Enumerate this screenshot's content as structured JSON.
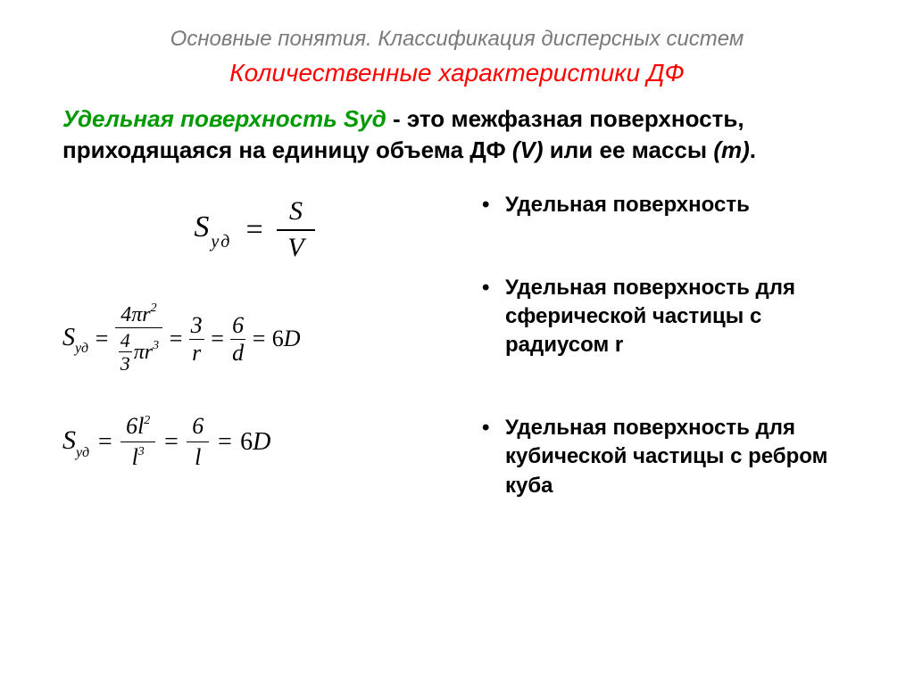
{
  "header": {
    "line1": "Основные понятия. Классификация дисперсных систем",
    "line2": "Количественные характеристики ДФ"
  },
  "definition": {
    "term": "Удельная поверхность Sуд",
    "text1": " - это межфазная поверхность, приходящаяся на единицу объема ДФ ",
    "ital1": "(V)",
    "text2": " или ее массы ",
    "ital2": "(m)",
    "text3": "."
  },
  "formulas": {
    "f1": {
      "lhs_S": "S",
      "lhs_sub": "уд",
      "eq": "=",
      "num": "S",
      "den": "V"
    },
    "f2": {
      "lhs_S": "S",
      "lhs_sub": "уд",
      "eq": "=",
      "num_txt": "4πr",
      "num_sup": "2",
      "den_frac_num": "4",
      "den_frac_den": "3",
      "den_rest": "πr",
      "den_sup": "3",
      "mid1_num": "3",
      "mid1_den": "r",
      "mid2_num": "6",
      "mid2_den": "d",
      "rhs_num": "6",
      "rhs_D": "D"
    },
    "f3": {
      "lhs_S": "S",
      "lhs_sub": "уд",
      "eq": "=",
      "num_txt": "6l",
      "num_sup": "2",
      "den_txt": "l",
      "den_sup": "3",
      "mid_num": "6",
      "mid_den": "l",
      "rhs_num": "6",
      "rhs_D": "D"
    }
  },
  "bullets": {
    "b1": "Удельная поверхность",
    "b2": "Удельная поверхность для сферической частицы с радиусом r",
    "b3": "Удельная поверхность для кубической частицы с ребром куба"
  },
  "style": {
    "title1_color": "#7a7a7a",
    "title2_color": "#ff0000",
    "term_color": "#009a00",
    "title1_fontsize": 24,
    "title2_fontsize": 28,
    "definition_fontsize": 26,
    "bullet_fontsize": 24,
    "background": "#ffffff"
  }
}
